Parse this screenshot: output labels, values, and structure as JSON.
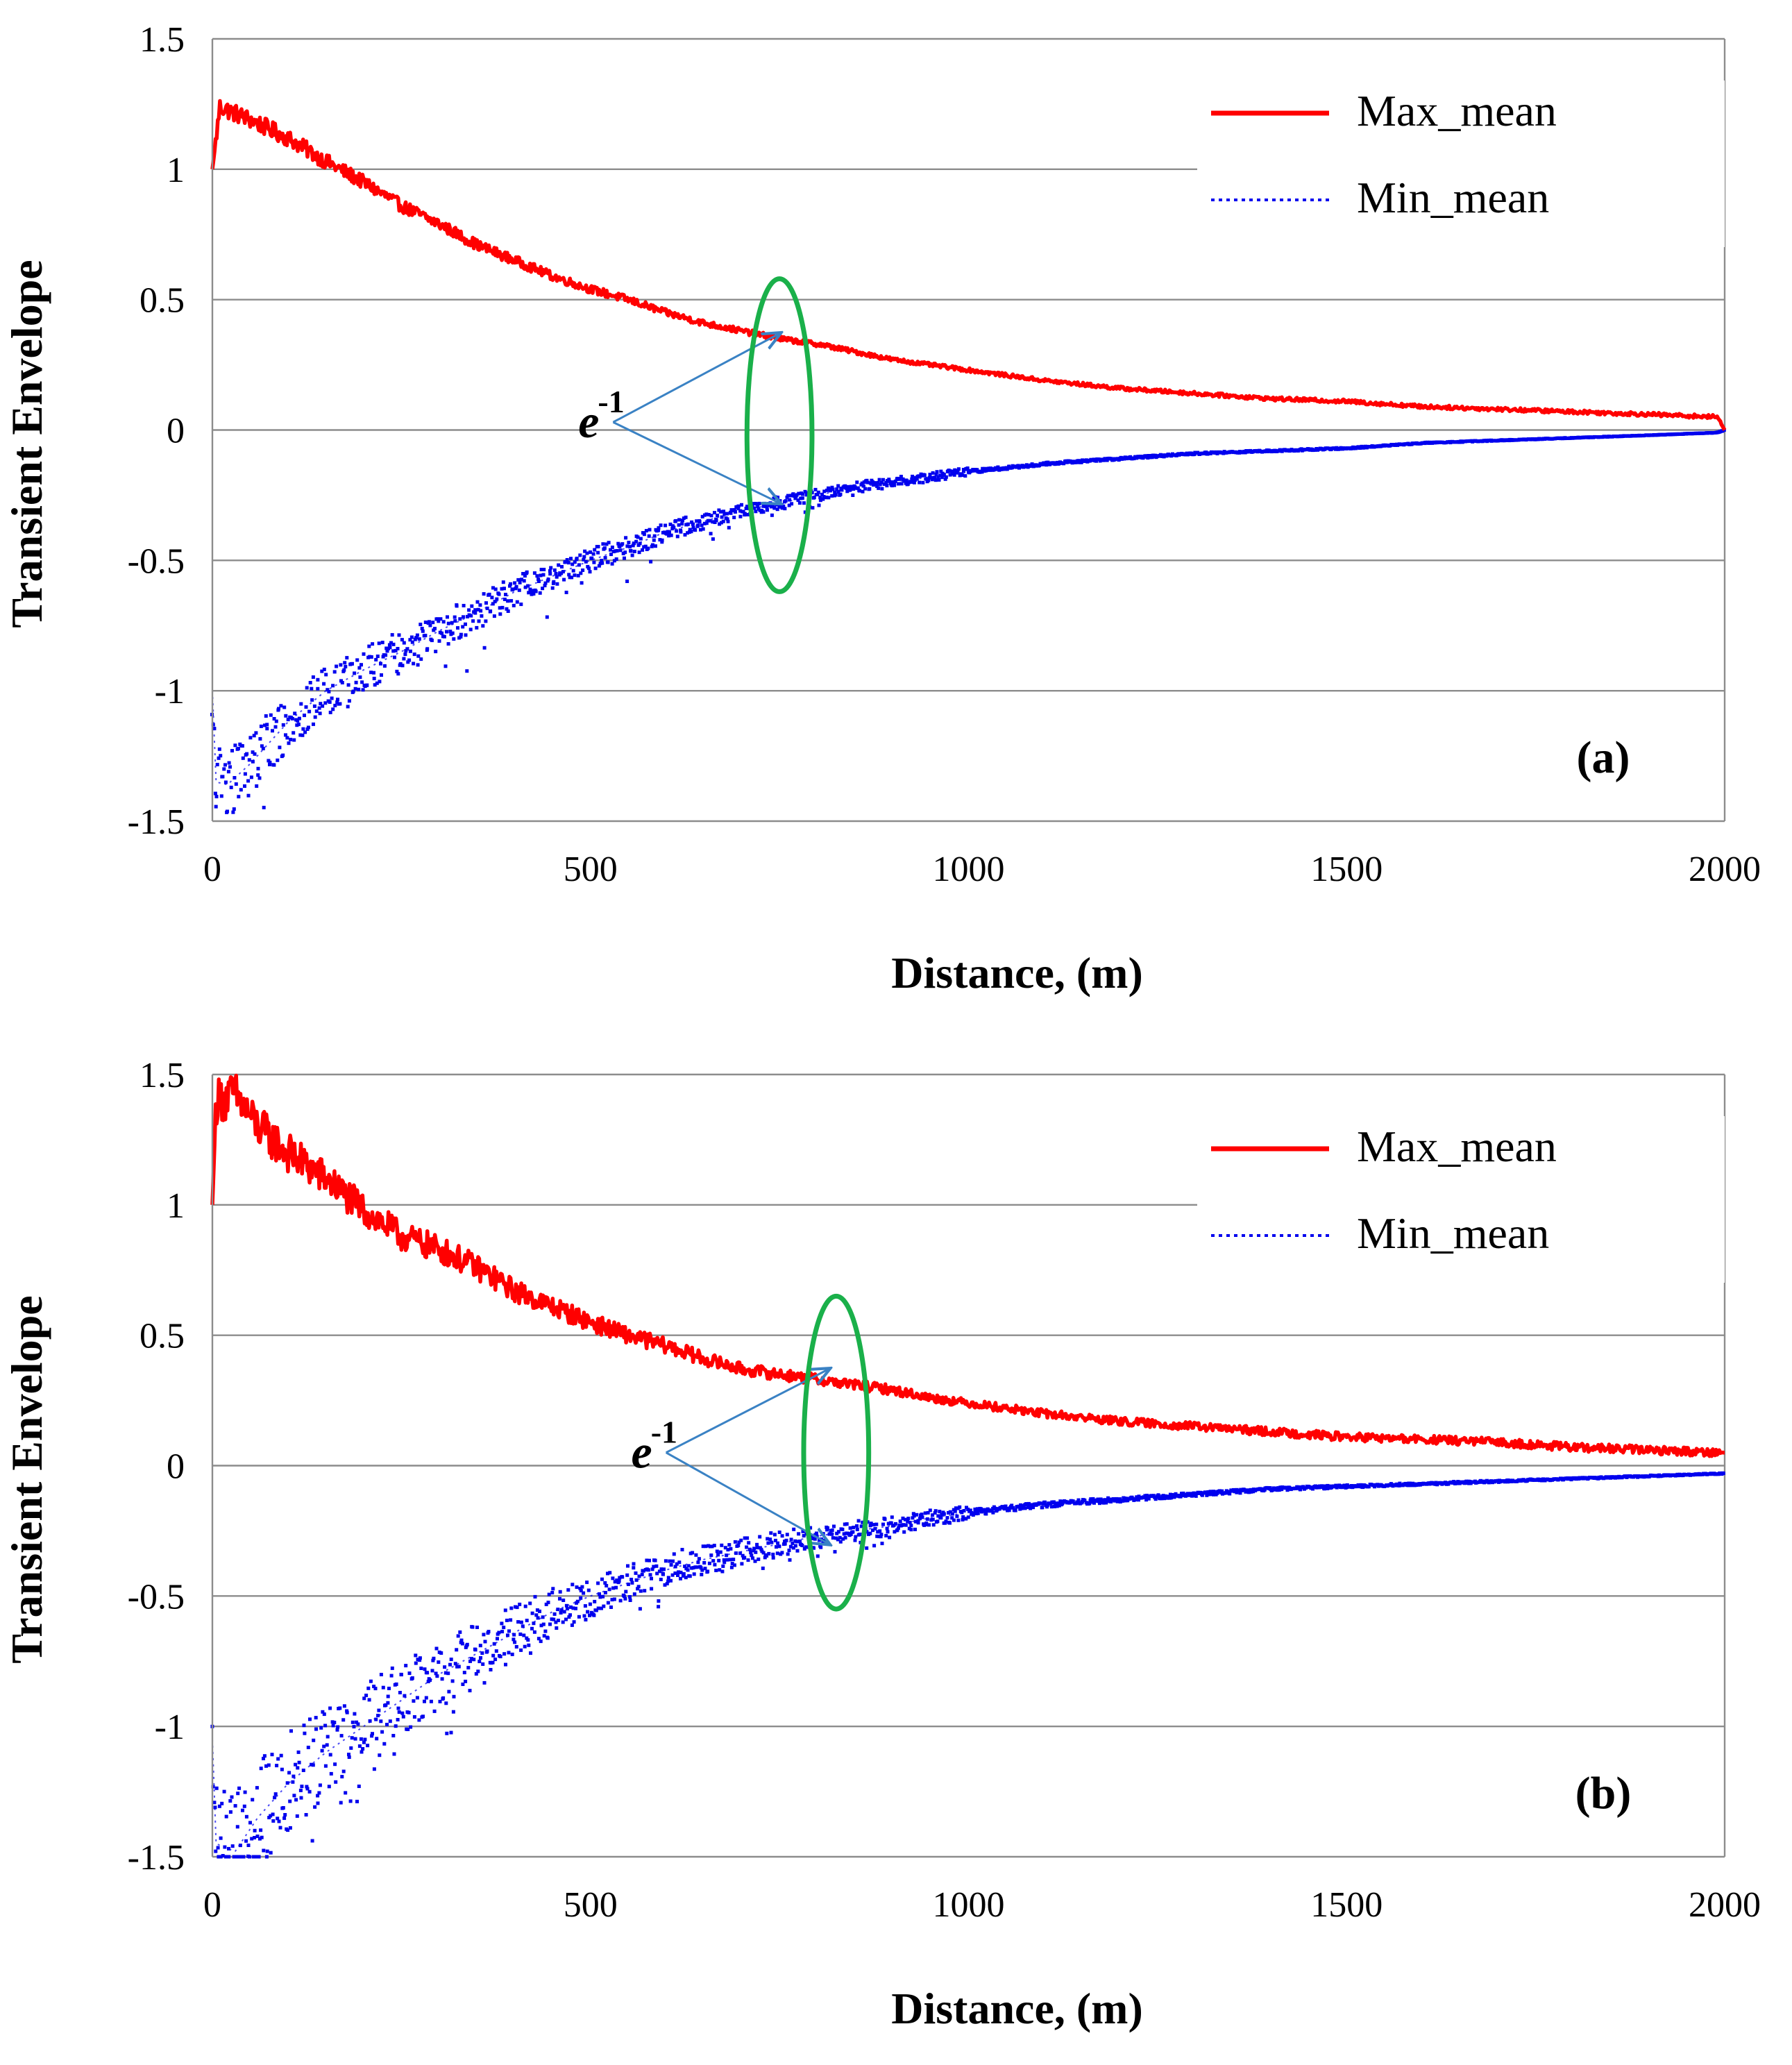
{
  "colors": {
    "max_series": "#ff0000",
    "min_series": "#0000ee",
    "highlight": "#1ab04a",
    "arrow": "#3a82c4",
    "grid": "#8c8c8c"
  },
  "chart_data": [
    {
      "type": "line",
      "panel_label": "(a)",
      "xlabel": "Distance, (m)",
      "ylabel": "Transient Envelope",
      "xlim": [
        0,
        2000
      ],
      "ylim": [
        -1.5,
        1.5
      ],
      "x_ticks": [
        0,
        500,
        1000,
        1500,
        2000
      ],
      "y_ticks": [
        -1.5,
        -1,
        -0.5,
        0,
        0.5,
        1,
        1.5
      ],
      "x_tick_labels": [
        "0",
        "500",
        "1000",
        "1500",
        "2000"
      ],
      "y_tick_labels": [
        "-1.5",
        "-1",
        "-0.5",
        "0",
        "0.5",
        "1",
        "1.5"
      ],
      "grid": "horizontal",
      "legend_position": "top-right",
      "annotation": {
        "base": "e",
        "exponent": "-1",
        "x": 530,
        "y": 0.03,
        "targets": [
          [
            750,
            0.37
          ],
          [
            750,
            -0.28
          ]
        ]
      },
      "highlight_ellipse": {
        "x": 750,
        "y": -0.02,
        "rx": 43,
        "ry": 0.6
      },
      "series": [
        {
          "name": "Max_mean",
          "style": "solid",
          "x": [
            0,
            10,
            50,
            100,
            150,
            200,
            250,
            300,
            350,
            400,
            450,
            500,
            550,
            600,
            650,
            700,
            750,
            800,
            850,
            900,
            950,
            1000,
            1100,
            1200,
            1300,
            1400,
            1500,
            1600,
            1700,
            1800,
            1900,
            1990,
            2000
          ],
          "values": [
            1.0,
            1.24,
            1.19,
            1.12,
            1.03,
            0.95,
            0.86,
            0.79,
            0.71,
            0.65,
            0.59,
            0.54,
            0.5,
            0.45,
            0.41,
            0.38,
            0.35,
            0.33,
            0.3,
            0.27,
            0.25,
            0.23,
            0.19,
            0.16,
            0.14,
            0.12,
            0.11,
            0.09,
            0.08,
            0.07,
            0.06,
            0.05,
            0.0
          ]
        },
        {
          "name": "Min_mean",
          "style": "dotted",
          "x": [
            0,
            5,
            20,
            50,
            100,
            150,
            200,
            250,
            300,
            350,
            400,
            450,
            500,
            550,
            600,
            650,
            700,
            750,
            800,
            850,
            900,
            950,
            1000,
            1100,
            1200,
            1300,
            1400,
            1500,
            1600,
            1700,
            1800,
            1900,
            1990,
            2000
          ],
          "values": [
            -1.0,
            -1.35,
            -1.36,
            -1.28,
            -1.12,
            -1.0,
            -0.92,
            -0.85,
            -0.77,
            -0.7,
            -0.62,
            -0.56,
            -0.5,
            -0.45,
            -0.39,
            -0.35,
            -0.31,
            -0.28,
            -0.25,
            -0.22,
            -0.2,
            -0.18,
            -0.16,
            -0.13,
            -0.11,
            -0.09,
            -0.08,
            -0.07,
            -0.05,
            -0.04,
            -0.03,
            -0.02,
            -0.01,
            0.0
          ]
        }
      ]
    },
    {
      "type": "line",
      "panel_label": "(b)",
      "xlabel": "Distance, (m)",
      "ylabel": "Transient Envelope",
      "xlim": [
        0,
        2000
      ],
      "ylim": [
        -1.5,
        1.5
      ],
      "x_ticks": [
        0,
        500,
        1000,
        1500,
        2000
      ],
      "y_ticks": [
        -1.5,
        -1,
        -0.5,
        0,
        0.5,
        1,
        1.5
      ],
      "x_tick_labels": [
        "0",
        "500",
        "1000",
        "1500",
        "2000"
      ],
      "y_tick_labels": [
        "-1.5",
        "-1",
        "-0.5",
        "0",
        "0.5",
        "1",
        "1.5"
      ],
      "grid": "horizontal",
      "legend_position": "top-right",
      "annotation": {
        "base": "e",
        "exponent": "-1",
        "x": 600,
        "y": 0.05,
        "targets": [
          [
            815,
            0.37
          ],
          [
            815,
            -0.3
          ]
        ]
      },
      "highlight_ellipse": {
        "x": 825,
        "y": 0.05,
        "rx": 43,
        "ry": 0.6
      },
      "series": [
        {
          "name": "Max_mean",
          "style": "solid",
          "x": [
            0,
            5,
            30,
            60,
            100,
            150,
            200,
            250,
            300,
            350,
            400,
            450,
            500,
            550,
            600,
            650,
            700,
            750,
            800,
            850,
            900,
            950,
            1000,
            1100,
            1200,
            1300,
            1400,
            1500,
            1600,
            1700,
            1800,
            1900,
            2000
          ],
          "values": [
            1.0,
            1.4,
            1.42,
            1.3,
            1.2,
            1.1,
            0.98,
            0.88,
            0.83,
            0.76,
            0.67,
            0.61,
            0.55,
            0.5,
            0.46,
            0.41,
            0.37,
            0.35,
            0.33,
            0.31,
            0.29,
            0.26,
            0.24,
            0.2,
            0.17,
            0.15,
            0.13,
            0.11,
            0.1,
            0.09,
            0.07,
            0.06,
            0.05
          ]
        },
        {
          "name": "Min_mean",
          "style": "dotted",
          "x": [
            0,
            5,
            30,
            60,
            100,
            150,
            200,
            250,
            300,
            350,
            400,
            450,
            500,
            550,
            600,
            650,
            700,
            750,
            800,
            850,
            900,
            950,
            1000,
            1100,
            1200,
            1300,
            1400,
            1500,
            1600,
            1700,
            1800,
            1900,
            2000
          ],
          "values": [
            -1.05,
            -1.45,
            -1.48,
            -1.35,
            -1.22,
            -1.1,
            -1.0,
            -0.9,
            -0.8,
            -0.72,
            -0.64,
            -0.56,
            -0.5,
            -0.45,
            -0.4,
            -0.36,
            -0.33,
            -0.3,
            -0.27,
            -0.25,
            -0.23,
            -0.2,
            -0.18,
            -0.15,
            -0.13,
            -0.11,
            -0.09,
            -0.08,
            -0.07,
            -0.06,
            -0.05,
            -0.04,
            -0.03
          ]
        }
      ]
    }
  ]
}
